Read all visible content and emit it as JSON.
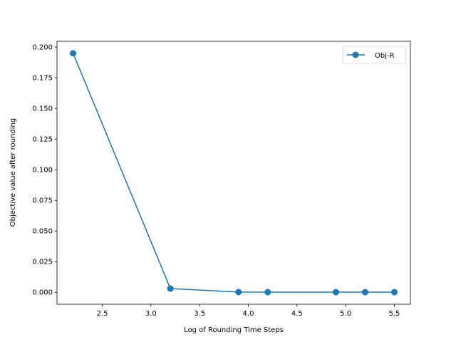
{
  "chart_data": {
    "type": "line",
    "xlabel": "Log of Rounding Time Steps",
    "ylabel": "Objective value after rounding",
    "xlim": [
      2.035,
      5.665
    ],
    "ylim": [
      -0.00975,
      0.2047
    ],
    "xticks": [
      2.5,
      3.0,
      3.5,
      4.0,
      4.5,
      5.0,
      5.5
    ],
    "xtick_labels": [
      "2.5",
      "3.0",
      "3.5",
      "4.0",
      "4.5",
      "5.0",
      "5.5"
    ],
    "yticks": [
      0.0,
      0.025,
      0.05,
      0.075,
      0.1,
      0.125,
      0.15,
      0.175,
      0.2
    ],
    "ytick_labels": [
      "0.000",
      "0.025",
      "0.050",
      "0.075",
      "0.100",
      "0.125",
      "0.150",
      "0.175",
      "0.200"
    ],
    "grid": false,
    "legend_position": "top-right",
    "series": [
      {
        "name": "Obj-R",
        "color": "#1f77b4",
        "marker": "circle",
        "x": [
          2.2,
          3.2,
          3.9,
          4.2,
          4.9,
          5.2,
          5.5
        ],
        "y": [
          0.195,
          0.003,
          0.0002,
          0.0001,
          0.0001,
          0.0001,
          0.0001
        ]
      }
    ]
  }
}
